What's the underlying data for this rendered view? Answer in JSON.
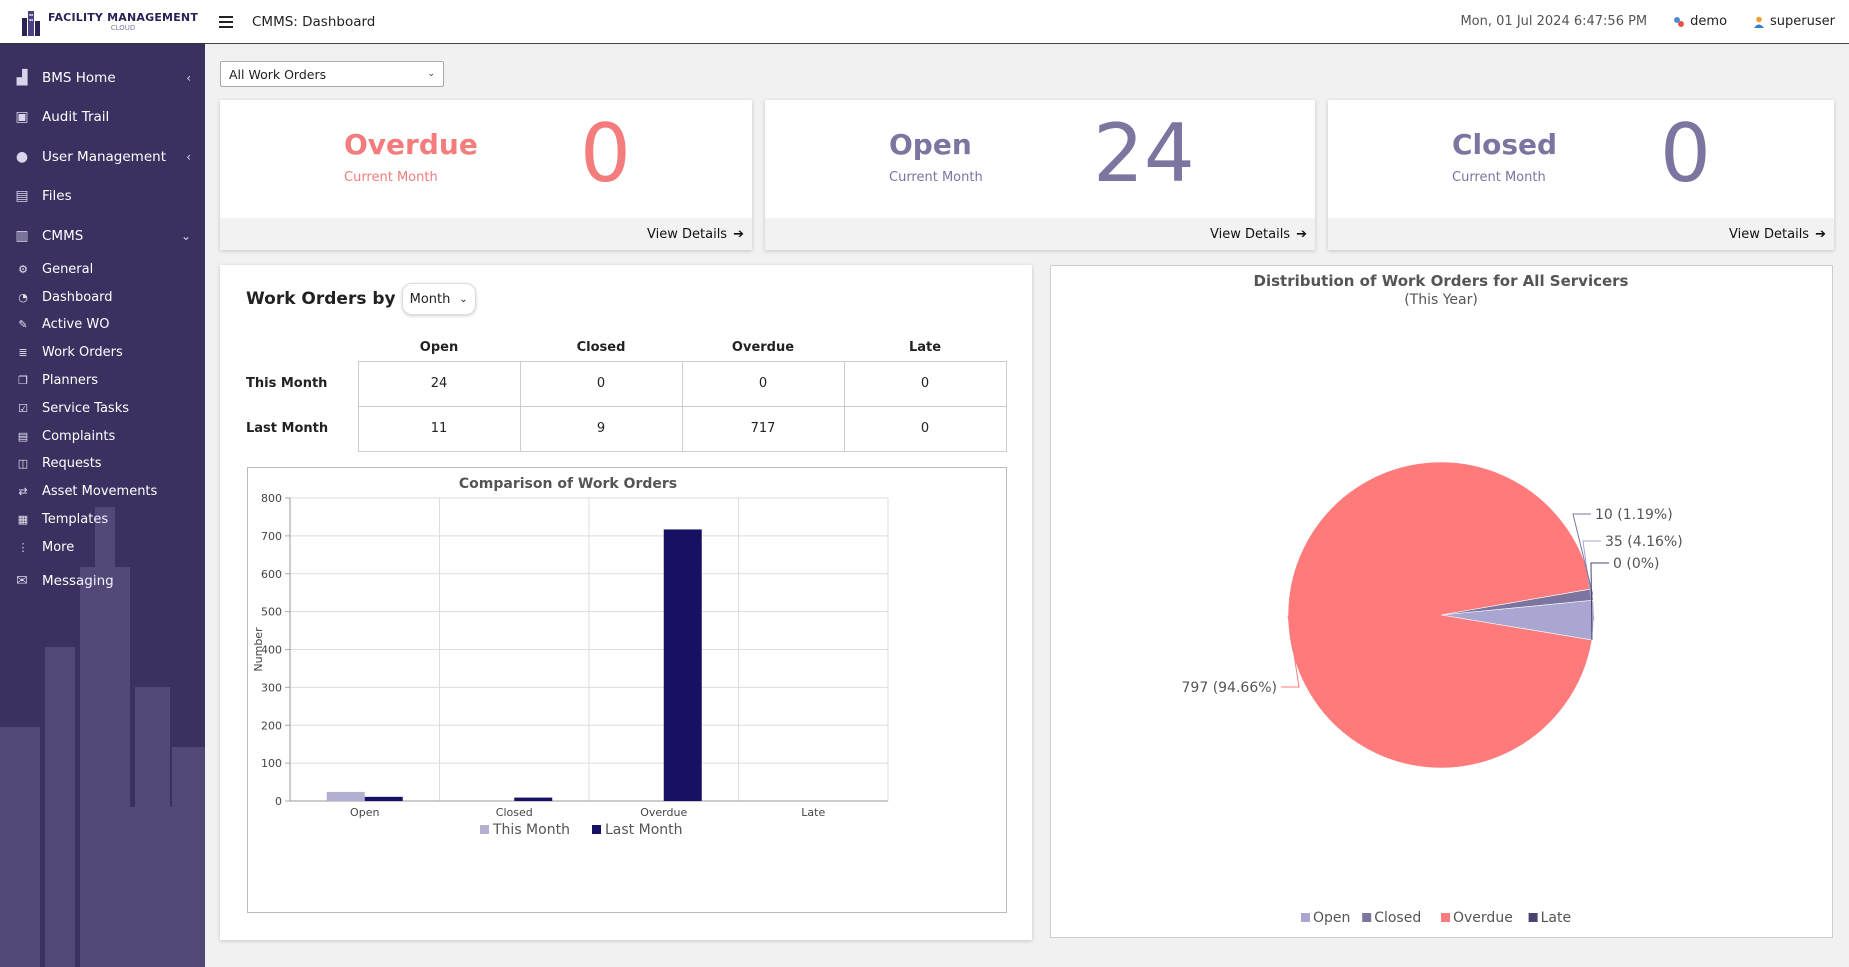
{
  "app": {
    "logo_title": "FACILITY MANAGEMENT",
    "logo_subtitle": "CLOUD",
    "page_title": "CMMS: Dashboard",
    "datetime": "Mon, 01 Jul 2024 6:47:56 PM",
    "users": [
      {
        "label": "demo",
        "icon": "network-user-icon"
      },
      {
        "label": "superuser",
        "icon": "user-icon"
      }
    ]
  },
  "sidebar": {
    "items": [
      {
        "label": "BMS Home",
        "icon": "building-icon",
        "caret": "‹"
      },
      {
        "label": "Audit Trail",
        "icon": "clipboard-icon",
        "caret": ""
      },
      {
        "label": "User Management",
        "icon": "users-icon",
        "caret": "‹"
      },
      {
        "label": "Files",
        "icon": "files-icon",
        "caret": ""
      },
      {
        "label": "CMMS",
        "icon": "cmms-icon",
        "caret": "⌄"
      }
    ],
    "cmms_sub": [
      {
        "label": "General",
        "icon": "cogs-icon",
        "glyph": "⚙"
      },
      {
        "label": "Dashboard",
        "icon": "dashboard-icon",
        "glyph": "◔"
      },
      {
        "label": "Active WO",
        "icon": "wrench-icon",
        "glyph": "✎"
      },
      {
        "label": "Work Orders",
        "icon": "list-icon",
        "glyph": "≣"
      },
      {
        "label": "Planners",
        "icon": "planner-icon",
        "glyph": "❐"
      },
      {
        "label": "Service Tasks",
        "icon": "check-square-icon",
        "glyph": "☑"
      },
      {
        "label": "Complaints",
        "icon": "complaints-icon",
        "glyph": "▤"
      },
      {
        "label": "Requests",
        "icon": "requests-icon",
        "glyph": "◫"
      },
      {
        "label": "Asset Movements",
        "icon": "exchange-icon",
        "glyph": "⇄"
      },
      {
        "label": "Templates",
        "icon": "template-icon",
        "glyph": "▦"
      },
      {
        "label": "More",
        "icon": "more-vertical-icon",
        "glyph": "⋮"
      }
    ],
    "last_item": {
      "label": "Messaging",
      "icon": "messaging-icon"
    }
  },
  "filter": {
    "selected": "All Work Orders"
  },
  "kpis": [
    {
      "title": "Overdue",
      "subtitle": "Current Month",
      "value": "0",
      "link": "View Details",
      "color": "#f47c7c"
    },
    {
      "title": "Open",
      "subtitle": "Current Month",
      "value": "24",
      "link": "View Details",
      "color": "#7b75a0"
    },
    {
      "title": "Closed",
      "subtitle": "Current Month",
      "value": "0",
      "link": "View Details",
      "color": "#7b75a0"
    }
  ],
  "work_orders_by": {
    "heading": "Work Orders by",
    "period": "Month",
    "columns": [
      "Open",
      "Closed",
      "Overdue",
      "Late"
    ],
    "rows": [
      {
        "label": "This Month",
        "values": [
          "24",
          "0",
          "0",
          "0"
        ]
      },
      {
        "label": "Last Month",
        "values": [
          "11",
          "9",
          "717",
          "0"
        ]
      }
    ]
  },
  "chart_data": [
    {
      "type": "bar",
      "title": "Comparison of Work Orders",
      "categories": [
        "Open",
        "Closed",
        "Overdue",
        "Late"
      ],
      "series": [
        {
          "name": "This Month",
          "values": [
            24,
            0,
            0,
            0
          ],
          "color": "#b3afd1"
        },
        {
          "name": "Last Month",
          "values": [
            11,
            9,
            717,
            0
          ],
          "color": "#171063"
        }
      ],
      "xlabel": "",
      "ylabel": "Number",
      "ylim": [
        0,
        800
      ],
      "yticks": [
        0,
        100,
        200,
        300,
        400,
        500,
        600,
        700,
        800
      ],
      "grid": true,
      "legend": "bottom"
    },
    {
      "type": "pie",
      "title": "Distribution of Work Orders for All Servicers",
      "subtitle": "(This Year)",
      "slices": [
        {
          "name": "Open",
          "value": 35,
          "label": "35 (4.16%)",
          "color": "#aaa6d2"
        },
        {
          "name": "Closed",
          "value": 10,
          "label": "10 (1.19%)",
          "color": "#7b75a0"
        },
        {
          "name": "Overdue",
          "value": 797,
          "label": "797 (94.66%)",
          "color": "#ff7b7b"
        },
        {
          "name": "Late",
          "value": 0,
          "label": "0 (0%)",
          "color": "#4a4470"
        }
      ],
      "legend": "bottom"
    }
  ]
}
